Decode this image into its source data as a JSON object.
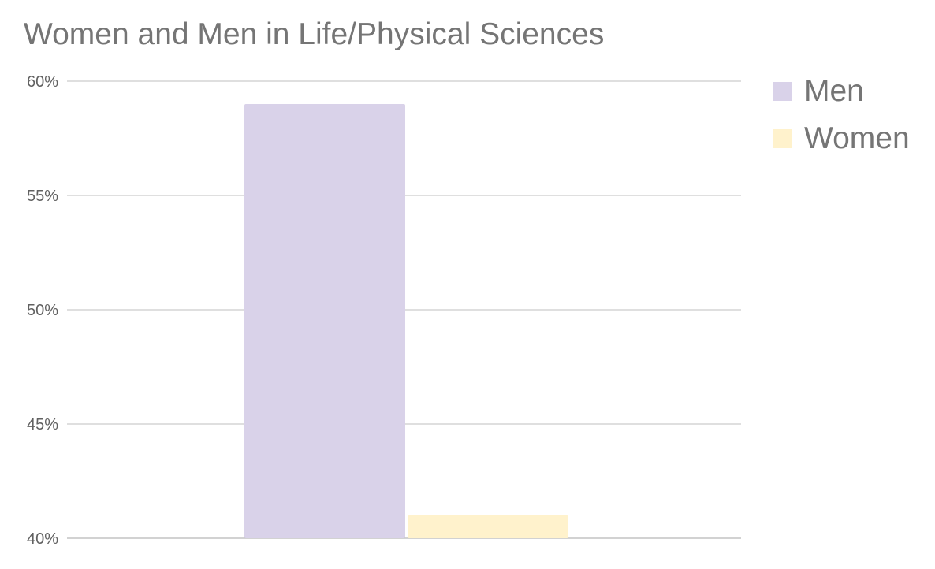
{
  "chart_data": {
    "type": "bar",
    "title": "Women and Men in Life/Physical Sciences",
    "xlabel": "",
    "ylabel": "",
    "categories": [
      ""
    ],
    "series": [
      {
        "name": "Men",
        "values": [
          59
        ],
        "color": "#d9d2e9"
      },
      {
        "name": "Women",
        "values": [
          41
        ],
        "color": "#fff2cc"
      }
    ],
    "ylim": [
      40,
      60
    ],
    "yticks": [
      40,
      45,
      50,
      55,
      60
    ],
    "ytick_labels": [
      "40%",
      "45%",
      "50%",
      "55%",
      "60%"
    ],
    "grid": true,
    "legend_position": "right"
  }
}
